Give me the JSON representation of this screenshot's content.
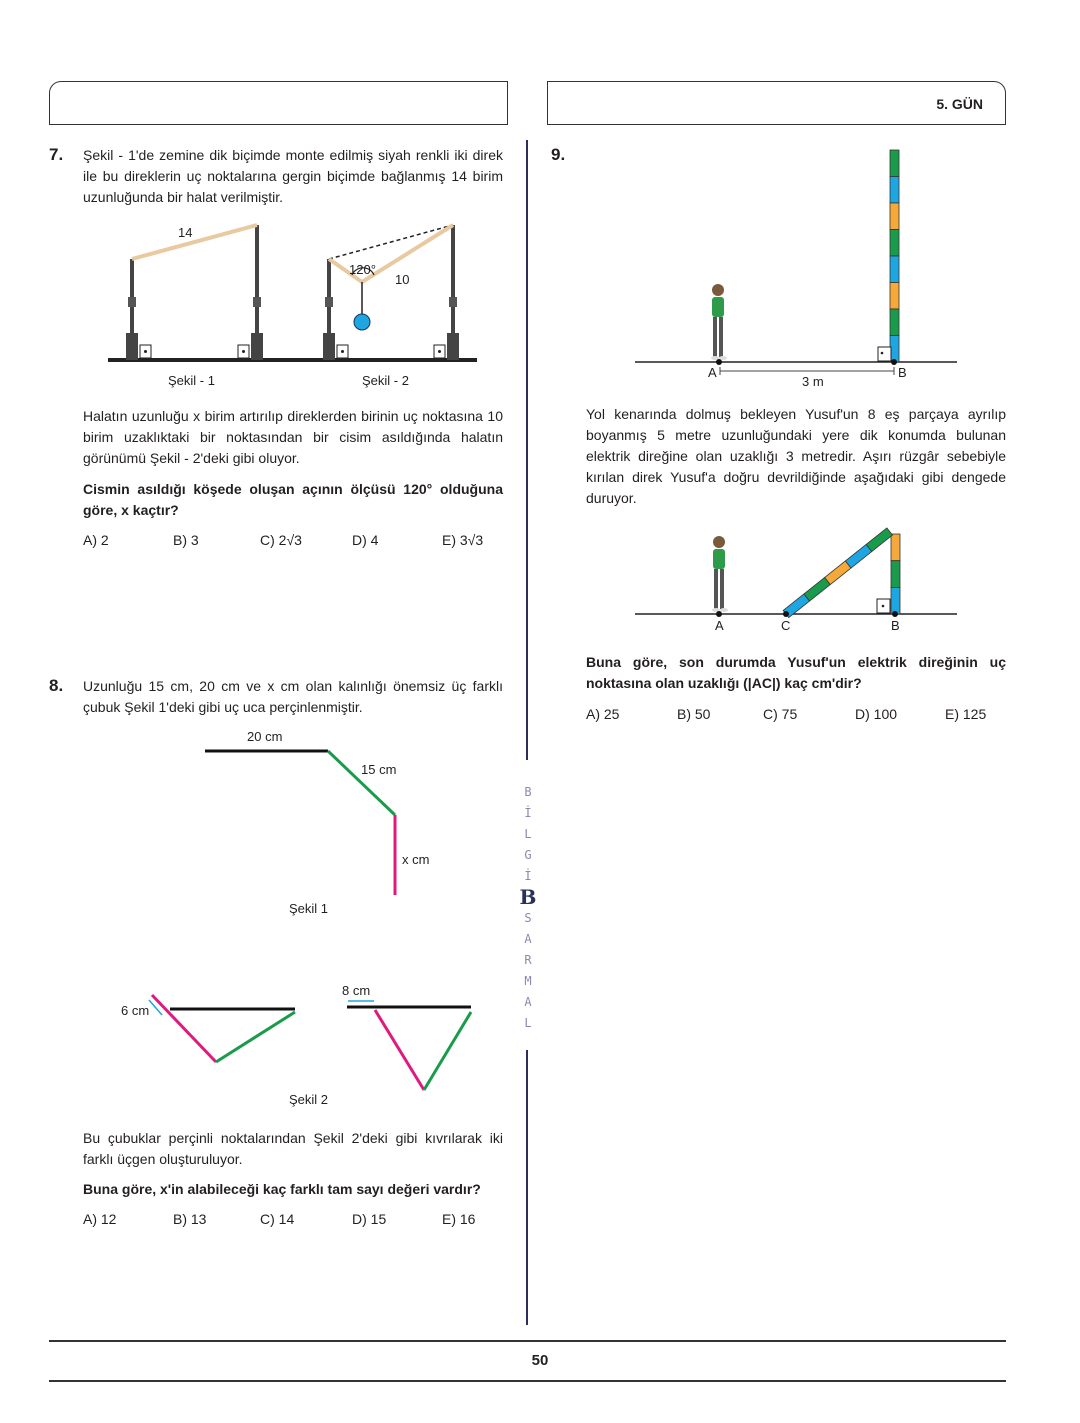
{
  "header": {
    "day_label": "5. GÜN"
  },
  "q7": {
    "number": "7.",
    "intro": "Şekil - 1'de zemine dik biçimde monte edilmiş siyah renkli iki direk ile bu direklerin uç noktalarına gergin biçimde bağlanmış 14 birim uzunluğunda bir halat verilmiştir.",
    "figure": {
      "rope_length": "14",
      "angle": "120°",
      "segment": "10",
      "caption1": "Şekil - 1",
      "caption2": "Şekil - 2"
    },
    "body": "Halatın uzunluğu x birim artırılıp direklerden birinin uç noktasına 10 birim uzaklıktaki bir noktasından bir cisim asıldığında halatın görünümü Şekil - 2'deki gibi oluyor.",
    "question": "Cismin asıldığı köşede oluşan açının ölçüsü 120° olduğuna göre, x kaçtır?",
    "options": [
      "A) 2",
      "B) 3",
      "C) 2√3",
      "D) 4",
      "E) 3√3"
    ]
  },
  "q8": {
    "number": "8.",
    "intro": "Uzunluğu 15 cm, 20 cm ve x cm olan kalınlığı önemsiz üç farklı çubuk Şekil 1'deki gibi uç uca perçinlenmiştir.",
    "figure1": {
      "label_20": "20 cm",
      "label_15": "15 cm",
      "label_x": "x cm",
      "caption": "Şekil 1"
    },
    "figure2": {
      "label_6": "6 cm",
      "label_8": "8 cm",
      "caption": "Şekil 2"
    },
    "body": "Bu çubuklar perçinli noktalarından Şekil 2'deki gibi kıvrılarak iki farklı üçgen oluşturuluyor.",
    "question": "Buna göre, x'in alabileceği kaç farklı tam sayı değeri vardır?",
    "options": [
      "A) 12",
      "B) 13",
      "C) 14",
      "D) 15",
      "E) 16"
    ]
  },
  "q9": {
    "number": "9.",
    "figure1": {
      "point_a": "A",
      "point_b": "B",
      "distance": "3 m"
    },
    "body": "Yol kenarında dolmuş bekleyen Yusuf'un 8 eş parçaya ayrılıp boyanmış 5 metre uzunluğundaki yere dik konumda bulunan elektrik direğine olan uzaklığı 3 metredir. Aşırı rüzgâr sebebiyle kırılan direk Yusuf'a doğru devrildiğinde aşağıdaki gibi dengede duruyor.",
    "figure2": {
      "point_a": "A",
      "point_c": "C",
      "point_b": "B"
    },
    "question": "Buna göre, son durumda Yusuf'un elektrik direğinin uç noktasına olan uzaklığı (|AC|) kaç cm'dir?",
    "options": [
      "A) 25",
      "B) 50",
      "C) 75",
      "D) 100",
      "E) 125"
    ]
  },
  "sidebar_logo": {
    "letters_top": [
      "B",
      "İ",
      "L",
      "G",
      "İ"
    ],
    "mark": "B",
    "letters_bottom": [
      "S",
      "A",
      "R",
      "M",
      "A",
      "L"
    ]
  },
  "footer": {
    "page_number": "50"
  },
  "colors": {
    "green": "#1a9b4b",
    "blue": "#1ea6e0",
    "orange": "#f5a93a",
    "magenta": "#e0197d",
    "navy": "#2c2f5a",
    "rope": "#e8c9a0"
  }
}
